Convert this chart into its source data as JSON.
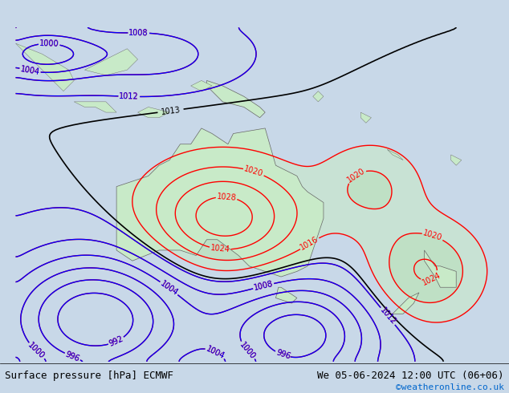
{
  "title_left": "Surface pressure [hPa] ECMWF",
  "title_right": "We 05-06-2024 12:00 UTC (06+06)",
  "credit": "©weatheronline.co.uk",
  "bg_color": "#d8e8f0",
  "land_color": "#c8eac8",
  "contour_color_red": "#ff0000",
  "contour_color_blue": "#0000ff",
  "contour_color_black": "#000000",
  "font_size_label": 9,
  "font_size_title": 9,
  "font_size_credit": 8
}
